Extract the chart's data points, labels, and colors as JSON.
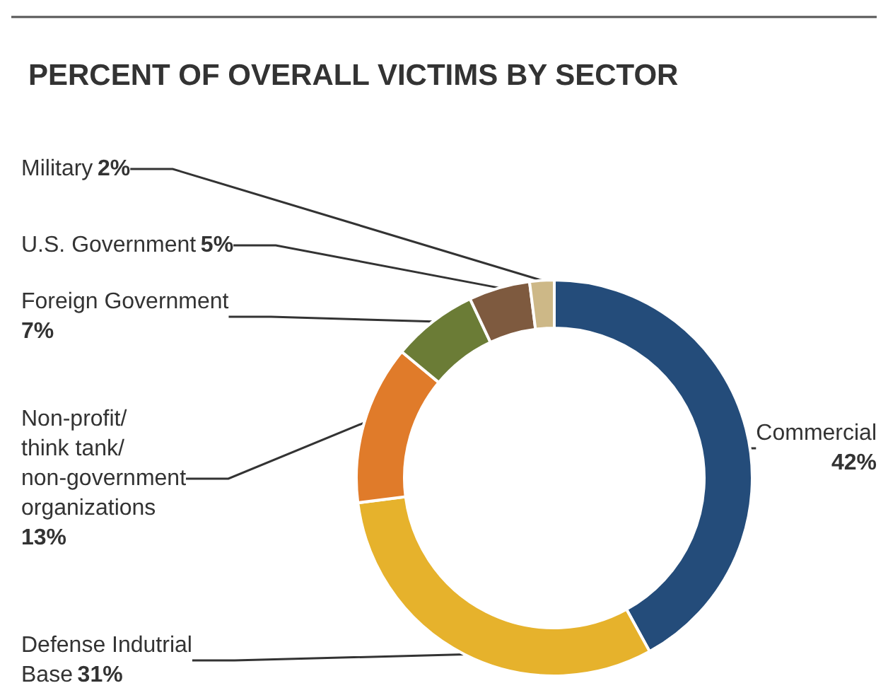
{
  "chart_data": {
    "type": "donut",
    "title": "PERCENT OF OVERALL VICTIMS BY SECTOR",
    "categories": [
      "Commercial",
      "Defense Indutrial\nBase",
      "Non-profit/\nthink tank/\nnon-government\norganizations",
      "Foreign Government",
      "U.S. Government",
      "Military"
    ],
    "values": [
      42,
      31,
      13,
      7,
      5,
      2
    ],
    "colors": [
      "#244c7a",
      "#e6b22c",
      "#e07b2a",
      "#6b7c36",
      "#7e5a3f",
      "#cdb887"
    ],
    "value_labels": [
      "42%",
      "31%",
      "13%",
      "7%",
      "5%",
      "2%"
    ],
    "legend": false
  }
}
